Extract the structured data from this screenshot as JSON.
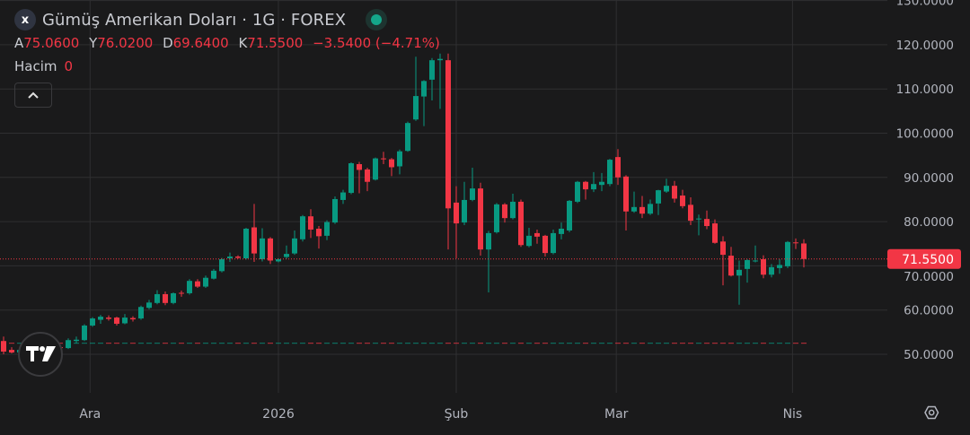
{
  "header": {
    "close_label": "x",
    "title": "Gümüş Amerikan Doları · 1G · FOREX",
    "ohlc": {
      "open_key": "A",
      "open": "75.0600",
      "high_key": "Y",
      "high": "76.0200",
      "low_key": "D",
      "low": "69.6400",
      "close_key": "K",
      "close": "71.5500",
      "change": "−3.5400 (−4.71%)"
    },
    "volume_label": "Hacim",
    "volume_value": "0",
    "collapse_icon": "chevron-up-icon"
  },
  "colors": {
    "up": "#089981",
    "down": "#f23645",
    "background": "#1a1a1b",
    "grid": "#2f2f31"
  },
  "chart_data": {
    "type": "candlestick",
    "ylim": [
      42,
      131
    ],
    "y_ticks": [
      50,
      60,
      70,
      80,
      90,
      100,
      110,
      120,
      130
    ],
    "y_tick_labels": [
      "50.0000",
      "60.0000",
      "70.0000",
      "80.0000",
      "90.0000",
      "100.0000",
      "110.0000",
      "120.0000",
      "130.0000"
    ],
    "x_ticks": [
      {
        "label": "Ara",
        "candle": 10.7
      },
      {
        "label": "2026",
        "candle": 34
      },
      {
        "label": "Şub",
        "candle": 56
      },
      {
        "label": "Mar",
        "candle": 75.8
      },
      {
        "label": "Nis",
        "candle": 97.6
      }
    ],
    "last_price": 71.55,
    "last_price_label": "71.5500",
    "volume_baseline": 52.6,
    "grid": true,
    "ohlc_fields": [
      "open",
      "high",
      "low",
      "close"
    ],
    "candles": [
      [
        53,
        54,
        50,
        50.6
      ],
      [
        51,
        51.6,
        50.2,
        50.4
      ],
      [
        50.4,
        51.2,
        50,
        51
      ],
      [
        51,
        51.5,
        50.3,
        50.7
      ],
      [
        50.7,
        51.6,
        50.4,
        51.3
      ],
      [
        51.3,
        52,
        50.9,
        51.1
      ],
      [
        51.1,
        51.8,
        50.8,
        51.6
      ],
      [
        51.6,
        52,
        51,
        51.4
      ],
      [
        51.4,
        53.6,
        51.2,
        53.2
      ],
      [
        53,
        54,
        52.5,
        53.3
      ],
      [
        53.2,
        56.8,
        53,
        56.5
      ],
      [
        56.5,
        58.4,
        56.2,
        58.1
      ],
      [
        57.8,
        58.9,
        56.9,
        58.5
      ],
      [
        58.3,
        58.8,
        57.6,
        58.0
      ],
      [
        58.3,
        58.5,
        56.5,
        56.9
      ],
      [
        57,
        59.1,
        56.8,
        58.3
      ],
      [
        58.2,
        58.6,
        57.4,
        57.9
      ],
      [
        58.1,
        61,
        57.8,
        60.7
      ],
      [
        60.5,
        62.3,
        60.2,
        61.7
      ],
      [
        61.6,
        64.5,
        61.3,
        63.6
      ],
      [
        63.6,
        64.2,
        61.1,
        61.6
      ],
      [
        61.6,
        64,
        61.3,
        63.8
      ],
      [
        63.9,
        64.4,
        63,
        63.7
      ],
      [
        63.8,
        67,
        63.5,
        66.6
      ],
      [
        66.5,
        67,
        65,
        65.3
      ],
      [
        65.3,
        67.8,
        65,
        67.3
      ],
      [
        67.1,
        69.3,
        66.9,
        68.9
      ],
      [
        68.8,
        71.8,
        68.5,
        71.5
      ],
      [
        71.7,
        73,
        70.9,
        72.1
      ],
      [
        72.1,
        72.4,
        71.6,
        71.8
      ],
      [
        71.7,
        78.6,
        71.4,
        78.4
      ],
      [
        78.7,
        84,
        70.9,
        72.8
      ],
      [
        71.5,
        78.5,
        71,
        76.2
      ],
      [
        76.2,
        76.5,
        70.4,
        71.2
      ],
      [
        71.0,
        71.7,
        70.8,
        71.5
      ],
      [
        72.0,
        74.6,
        71.6,
        72.7
      ],
      [
        72.8,
        78,
        72.5,
        76.2
      ],
      [
        76,
        81.5,
        75.5,
        81.2
      ],
      [
        81.2,
        82.8,
        76.3,
        78.2
      ],
      [
        78.4,
        79,
        73.9,
        76.7
      ],
      [
        76.8,
        80.3,
        75.8,
        79.9
      ],
      [
        79.8,
        85.7,
        79.5,
        85.1
      ],
      [
        84.9,
        87.2,
        84,
        86.6
      ],
      [
        86.5,
        93.4,
        86.2,
        93.2
      ],
      [
        93,
        93.5,
        86.4,
        91.7
      ],
      [
        91.8,
        92.2,
        86.9,
        89.0
      ],
      [
        89.5,
        94.5,
        89.3,
        94.3
      ],
      [
        94.3,
        95.8,
        93,
        94.2
      ],
      [
        94.1,
        94.4,
        90.3,
        92.3
      ],
      [
        92.5,
        96.3,
        90.7,
        95.9
      ],
      [
        96,
        102.6,
        95.8,
        102.3
      ],
      [
        103.1,
        117.3,
        102.8,
        108.4
      ],
      [
        108.3,
        112,
        101.6,
        111.8
      ],
      [
        112.1,
        117,
        107.4,
        116.5
      ],
      [
        116.5,
        118,
        105.5,
        116.8
      ],
      [
        116.5,
        118,
        73.7,
        83.0
      ],
      [
        84.3,
        88,
        71.7,
        79.6
      ],
      [
        79.8,
        89,
        79.2,
        84.9
      ],
      [
        84.9,
        92.2,
        84.6,
        87.5
      ],
      [
        87.5,
        88.8,
        72.3,
        73.7
      ],
      [
        73.7,
        77.9,
        64,
        77.4
      ],
      [
        77.6,
        84.2,
        77.3,
        83.9
      ],
      [
        83.9,
        84.2,
        79.8,
        80.8
      ],
      [
        80.8,
        86.3,
        80.5,
        84.5
      ],
      [
        84.5,
        85,
        74.3,
        74.7
      ],
      [
        74.5,
        78.6,
        74.2,
        76.8
      ],
      [
        77.4,
        78.2,
        75,
        76.6
      ],
      [
        76.8,
        77,
        72.1,
        72.9
      ],
      [
        72.9,
        78.2,
        72.6,
        77.4
      ],
      [
        77.2,
        79.8,
        76,
        78.4
      ],
      [
        78,
        84.9,
        77.6,
        84.7
      ],
      [
        84.5,
        89.2,
        84.2,
        89
      ],
      [
        89,
        89.2,
        85,
        87.3
      ],
      [
        87.3,
        91.2,
        86.7,
        88.5
      ],
      [
        88.3,
        91,
        86.9,
        89
      ],
      [
        88.5,
        94.2,
        88,
        94
      ],
      [
        94.6,
        96.4,
        88.3,
        90.0
      ],
      [
        90.2,
        90.5,
        78,
        82.3
      ],
      [
        82.3,
        86.8,
        82,
        83.3
      ],
      [
        83.3,
        85.8,
        80.8,
        81.8
      ],
      [
        81.8,
        85,
        81.5,
        84
      ],
      [
        84.1,
        87.2,
        81.5,
        87.1
      ],
      [
        86.8,
        89.7,
        86.5,
        88.1
      ],
      [
        88.1,
        89.2,
        84.3,
        85.2
      ],
      [
        85.9,
        87.2,
        83,
        83.5
      ],
      [
        83.8,
        85.5,
        79.2,
        80.2
      ],
      [
        80.5,
        81.6,
        76.9,
        80.7
      ],
      [
        80.6,
        82.5,
        78.3,
        79.0
      ],
      [
        79.6,
        80.5,
        75.0,
        75.2
      ],
      [
        75.5,
        76.7,
        65.6,
        72.5
      ],
      [
        72.3,
        74.3,
        67.6,
        67.8
      ],
      [
        67.8,
        71.2,
        61.2,
        69.1
      ],
      [
        69.3,
        71.5,
        66.2,
        71.3
      ],
      [
        71.1,
        74.6,
        70.8,
        71.2
      ],
      [
        71.5,
        72.4,
        67.2,
        68
      ],
      [
        68,
        70.4,
        67.4,
        69.7
      ],
      [
        69.5,
        71.5,
        68.2,
        70.2
      ],
      [
        69.9,
        75.6,
        69.5,
        75.4
      ],
      [
        75.3,
        76.2,
        73.8,
        75.1
      ],
      [
        75.06,
        76.02,
        69.64,
        71.55
      ]
    ]
  },
  "footer": {
    "settings_icon": "settings-hexagon-icon"
  }
}
